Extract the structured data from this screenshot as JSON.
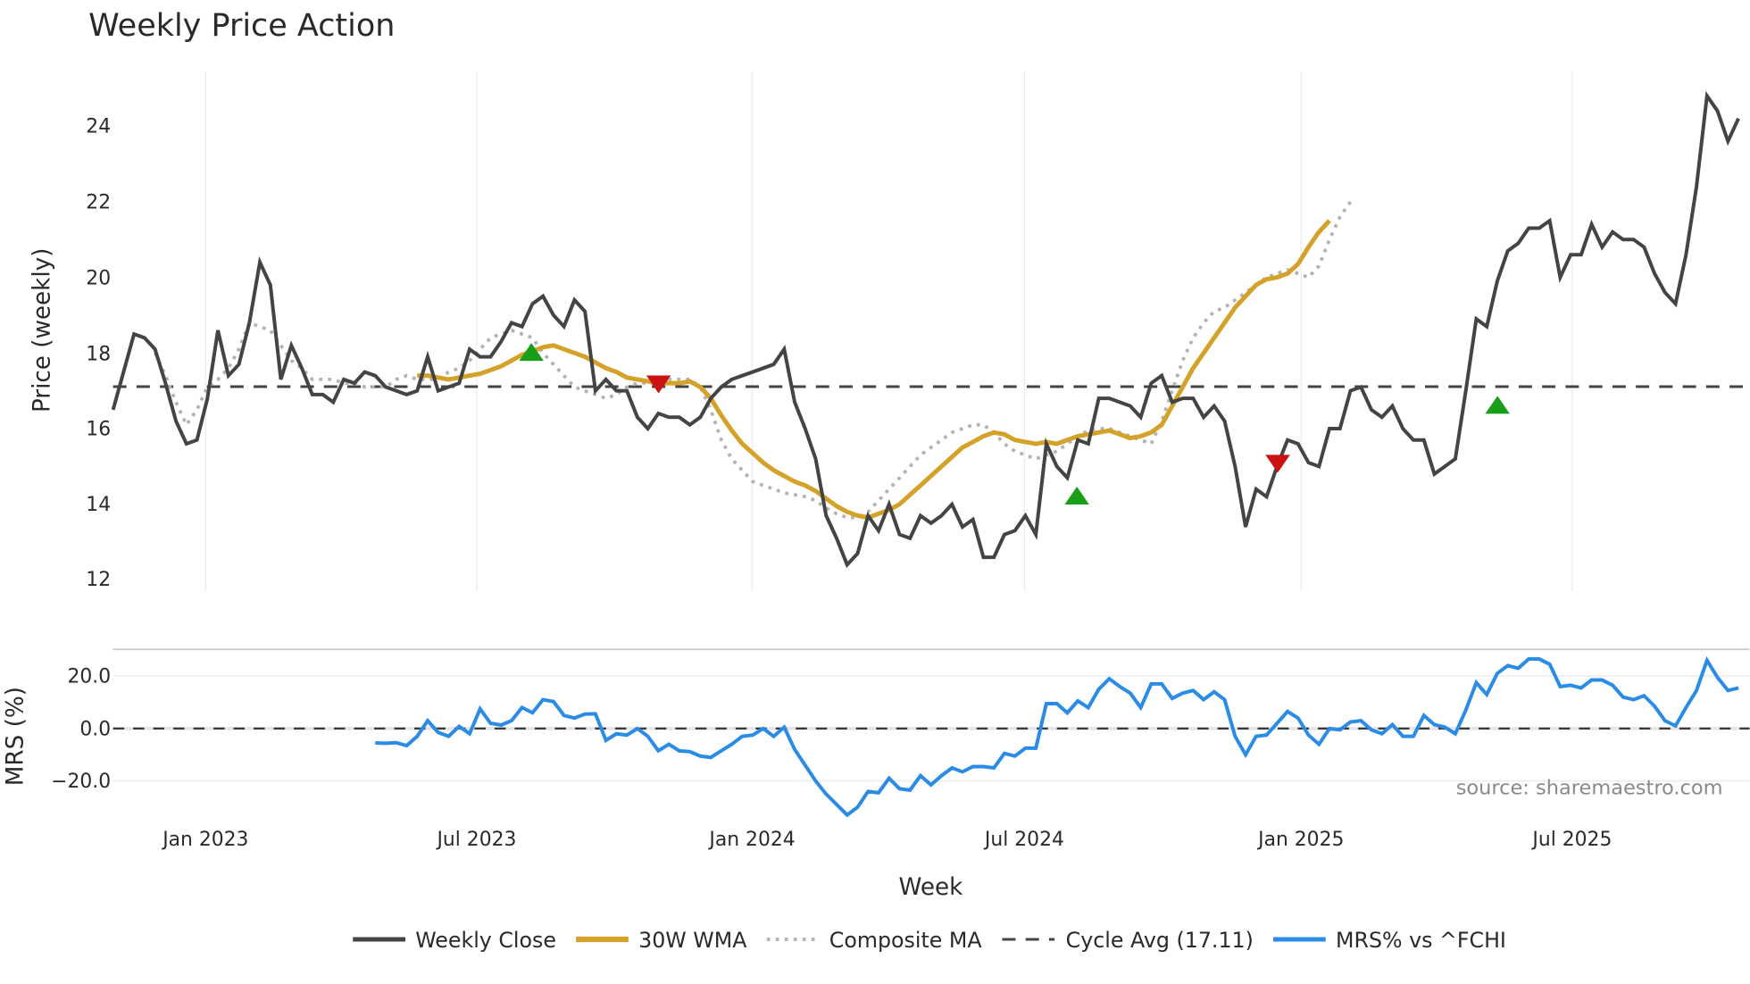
{
  "chart_data": [
    {
      "type": "line",
      "title": "Weekly Price Action",
      "xlabel": "",
      "ylabel": "Price (weekly)",
      "ylim": [
        11.7,
        25.5
      ],
      "yticks": [
        12,
        14,
        16,
        18,
        20,
        22,
        24
      ],
      "grid": {
        "x": true,
        "y": false
      },
      "x_start": "2022-09",
      "x_step": "1 week",
      "series": [
        {
          "name": "Weekly Close",
          "color": "#444444",
          "style": "solid",
          "values": [
            16.5,
            17.5,
            18.5,
            18.4,
            18.1,
            17.2,
            16.2,
            15.6,
            15.7,
            16.8,
            18.6,
            17.4,
            17.7,
            18.8,
            20.4,
            19.8,
            17.3,
            18.2,
            17.6,
            16.9,
            16.9,
            16.7,
            17.3,
            17.2,
            17.5,
            17.4,
            17.1,
            17.0,
            16.9,
            17.0,
            17.9,
            17.0,
            17.1,
            17.2,
            18.1,
            17.9,
            17.9,
            18.3,
            18.8,
            18.7,
            19.3,
            19.5,
            19.0,
            18.7,
            19.4,
            19.1,
            17.0,
            17.3,
            17.0,
            17.0,
            16.3,
            16.0,
            16.4,
            16.3,
            16.3,
            16.1,
            16.3,
            16.8,
            17.1,
            17.3,
            17.4,
            17.5,
            17.6,
            17.7,
            18.1,
            16.7,
            16.0,
            15.2,
            13.7,
            13.1,
            12.4,
            12.7,
            13.7,
            13.3,
            14.0,
            13.2,
            13.1,
            13.7,
            13.5,
            13.7,
            14.0,
            13.4,
            13.6,
            12.6,
            12.6,
            13.2,
            13.3,
            13.7,
            13.2,
            15.6,
            15.0,
            14.7,
            15.7,
            15.6,
            16.8,
            16.8,
            16.7,
            16.6,
            16.3,
            17.2,
            17.4,
            16.7,
            16.8,
            16.8,
            16.3,
            16.6,
            16.2,
            15.0,
            13.4,
            14.4,
            14.2,
            15.0,
            15.7,
            15.6,
            15.1,
            15.0,
            16.0,
            16.0,
            17.0,
            17.1,
            16.5,
            16.3,
            16.6,
            16.0,
            15.7,
            15.7,
            14.8,
            15.0,
            15.2,
            17.0,
            18.9,
            18.7,
            19.9,
            20.7,
            20.9,
            21.3,
            21.3,
            21.5,
            20.0,
            20.6,
            20.6,
            21.4,
            20.8,
            21.2,
            21.0,
            21.0,
            20.8,
            20.1,
            19.6,
            19.3,
            20.6,
            22.4,
            24.8,
            24.4,
            23.6,
            24.2
          ]
        },
        {
          "name": "30W WMA",
          "color": "#d4a228",
          "style": "solid",
          "start_index": 29,
          "values": [
            17.4,
            17.4,
            17.35,
            17.3,
            17.35,
            17.4,
            17.45,
            17.55,
            17.65,
            17.8,
            17.95,
            18.05,
            18.15,
            18.2,
            18.1,
            18.0,
            17.9,
            17.75,
            17.6,
            17.5,
            17.35,
            17.3,
            17.25,
            17.2,
            17.2,
            17.2,
            17.25,
            17.1,
            16.8,
            16.35,
            15.95,
            15.6,
            15.35,
            15.1,
            14.9,
            14.75,
            14.6,
            14.5,
            14.35,
            14.15,
            13.95,
            13.8,
            13.7,
            13.65,
            13.75,
            13.85,
            14.0,
            14.25,
            14.5,
            14.75,
            15.0,
            15.25,
            15.5,
            15.65,
            15.8,
            15.9,
            15.85,
            15.7,
            15.65,
            15.6,
            15.65,
            15.6,
            15.7,
            15.8,
            15.85,
            15.9,
            15.95,
            15.85,
            15.75,
            15.8,
            15.9,
            16.1,
            16.6,
            17.1,
            17.6,
            18.0,
            18.4,
            18.8,
            19.2,
            19.5,
            19.8,
            19.95,
            20.0,
            20.1,
            20.35,
            20.8,
            21.2,
            21.5
          ]
        },
        {
          "name": "Composite MA",
          "color": "#b3b3b3",
          "style": "dotted",
          "start_index": 4,
          "values": [
            18.0,
            17.4,
            16.7,
            16.1,
            16.5,
            17.1,
            17.3,
            17.6,
            18.1,
            18.8,
            18.7,
            18.6,
            18.2,
            17.8,
            17.6,
            17.3,
            17.3,
            17.3,
            17.2,
            17.2,
            17.1,
            17.1,
            17.1,
            17.3,
            17.4,
            17.3,
            17.3,
            17.3,
            17.5,
            17.6,
            17.8,
            18.1,
            18.4,
            18.5,
            18.6,
            18.5,
            18.4,
            18.0,
            17.7,
            17.4,
            17.1,
            17.0,
            16.9,
            16.8,
            16.9,
            17.1,
            17.2,
            17.2,
            17.2,
            17.3,
            17.3,
            17.3,
            17.1,
            16.5,
            15.7,
            15.2,
            14.9,
            14.6,
            14.5,
            14.4,
            14.3,
            14.25,
            14.2,
            14.1,
            13.9,
            13.75,
            13.65,
            13.65,
            13.8,
            14.1,
            14.4,
            14.7,
            15.0,
            15.3,
            15.5,
            15.7,
            15.9,
            16.0,
            16.1,
            16.1,
            15.9,
            15.6,
            15.4,
            15.3,
            15.2,
            15.3,
            15.4,
            15.6,
            15.8,
            15.95,
            16.0,
            16.0,
            15.9,
            15.8,
            15.7,
            15.6,
            16.2,
            17.0,
            17.8,
            18.4,
            18.8,
            19.1,
            19.2,
            19.4,
            19.6,
            19.8,
            20.0,
            20.1,
            20.2,
            20.1,
            20.0,
            20.3,
            21.0,
            21.6,
            22.0
          ]
        },
        {
          "name": "Cycle Avg (17.11)",
          "color": "#444444",
          "style": "dashed",
          "value": 17.11
        }
      ],
      "markers": [
        {
          "type": "buy",
          "shape": "triangle-up",
          "color": "#1a9e1a",
          "x_label": "Aug 2023",
          "y": 18.0
        },
        {
          "type": "sell",
          "shape": "triangle-down",
          "color": "#cc1111",
          "x_label": "Oct 2023",
          "y": 17.2
        },
        {
          "type": "buy",
          "shape": "triangle-up",
          "color": "#1a9e1a",
          "x_label": "Aug 2024",
          "y": 14.2
        },
        {
          "type": "sell",
          "shape": "triangle-down",
          "color": "#cc1111",
          "x_label": "Dec 2024",
          "y": 15.1
        },
        {
          "type": "buy",
          "shape": "triangle-up",
          "color": "#1a9e1a",
          "x_label": "May 2025",
          "y": 16.6
        }
      ]
    },
    {
      "type": "line",
      "title": "",
      "xlabel": "Week",
      "ylabel": "MRS (%)",
      "ylim": [
        -35,
        32
      ],
      "yticks": [
        -20.0,
        0.0,
        20.0
      ],
      "xticks": [
        "Jan 2023",
        "Jul 2023",
        "Jan 2024",
        "Jul 2024",
        "Jan 2025",
        "Jul 2025"
      ],
      "series": [
        {
          "name": "MRS% vs ^FCHI",
          "color": "#2b8ce6",
          "style": "solid",
          "start_index": 25,
          "values": [
            -5.5,
            -5.6,
            -5.4,
            -6.5,
            -3.0,
            3.0,
            -1.5,
            -3.0,
            0.8,
            -2.0,
            7.5,
            2.0,
            1.3,
            3.0,
            8.0,
            6.0,
            11.0,
            10.3,
            5.0,
            4.0,
            5.5,
            5.6,
            -4.5,
            -2.0,
            -2.5,
            0.0,
            -3.0,
            -8.5,
            -6.0,
            -8.5,
            -8.8,
            -10.5,
            -11.0,
            -8.5,
            -6.0,
            -3.0,
            -2.5,
            0.0,
            -3.0,
            0.5,
            -8.0,
            -14.0,
            -20.0,
            -25.0,
            -29.0,
            -33.0,
            -30.0,
            -24.0,
            -24.5,
            -19.0,
            -23.0,
            -23.5,
            -18.0,
            -21.5,
            -18.0,
            -15.0,
            -16.5,
            -14.5,
            -14.5,
            -15.0,
            -9.5,
            -10.5,
            -7.5,
            -7.5,
            9.5,
            9.5,
            6.0,
            10.5,
            8.0,
            15.0,
            19.0,
            16.0,
            13.5,
            8.0,
            17.0,
            17.0,
            11.5,
            13.5,
            14.5,
            11.0,
            14.0,
            11.0,
            -3.0,
            -10.0,
            -3.0,
            -2.5,
            2.0,
            6.5,
            4.0,
            -2.5,
            -6.0,
            0.0,
            -0.5,
            2.5,
            3.0,
            -0.5,
            -2.0,
            1.5,
            -3.0,
            -3.0,
            5.0,
            1.5,
            0.5,
            -2.0,
            7.0,
            17.5,
            13.0,
            21.0,
            24.0,
            23.0,
            26.5,
            26.5,
            24.5,
            16.0,
            16.5,
            15.5,
            18.5,
            18.5,
            16.5,
            12.0,
            11.0,
            12.5,
            8.5,
            3.0,
            1.0,
            8.0,
            14.5,
            26.0,
            19.5,
            14.5,
            15.5
          ]
        },
        {
          "name": "zero line",
          "color": "#444444",
          "style": "dashed",
          "value": 0
        }
      ],
      "annotation": "source: sharemaestro.com"
    }
  ],
  "title": "Weekly Price Action",
  "top_panel": {
    "ylabel": "Price (weekly)",
    "yticks": [
      "12",
      "14",
      "16",
      "18",
      "20",
      "22",
      "24"
    ]
  },
  "bottom_panel": {
    "ylabel": "MRS (%)",
    "yticks": [
      "20.0",
      "0.0",
      "−20.0"
    ],
    "source": "source: sharemaestro.com"
  },
  "xaxis": {
    "label": "Week",
    "ticks": [
      "Jan 2023",
      "Jul 2023",
      "Jan 2024",
      "Jul 2024",
      "Jan 2025",
      "Jul 2025"
    ]
  },
  "legend": {
    "items": [
      {
        "label": "Weekly Close",
        "color": "#444444",
        "style": "solid"
      },
      {
        "label": "30W WMA",
        "color": "#d4a228",
        "style": "solid"
      },
      {
        "label": "Composite MA",
        "color": "#b3b3b3",
        "style": "dotted"
      },
      {
        "label": "Cycle Avg (17.11)",
        "color": "#444444",
        "style": "dashed"
      },
      {
        "label": "MRS% vs ^FCHI",
        "color": "#2b8ce6",
        "style": "solid"
      }
    ]
  }
}
